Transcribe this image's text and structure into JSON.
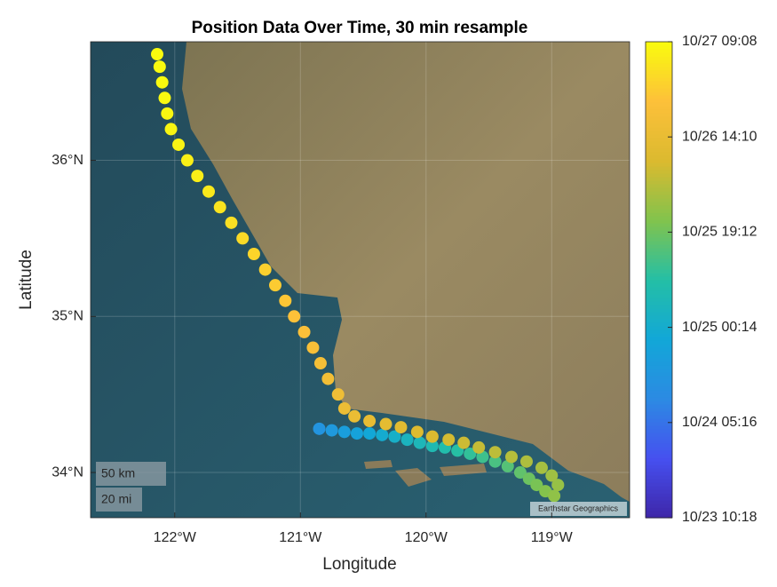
{
  "chart_data": {
    "type": "scatter",
    "title": "Position Data Over Time, 30 min resample",
    "xlabel": "Longitude",
    "ylabel": "Latitude",
    "xlim": [
      -122.67,
      -118.38
    ],
    "ylim": [
      33.71,
      36.76
    ],
    "xticks": [
      {
        "value": -122,
        "label": "122°W"
      },
      {
        "value": -121,
        "label": "121°W"
      },
      {
        "value": -120,
        "label": "120°W"
      },
      {
        "value": -119,
        "label": "119°W"
      }
    ],
    "yticks": [
      {
        "value": 34,
        "label": "34°N"
      },
      {
        "value": 35,
        "label": "35°N"
      },
      {
        "value": 36,
        "label": "36°N"
      }
    ],
    "clim": [
      "10/23 10:18",
      "10/27 09:08"
    ],
    "cticks": [
      "10/23 10:18",
      "10/24 05:16",
      "10/25 00:14",
      "10/25 19:12",
      "10/26 14:10",
      "10/27 09:08"
    ],
    "annotations": [
      "50 km",
      "20 mi",
      "Earthstar Geographics"
    ],
    "x": [
      -120.85,
      -120.75,
      -120.65,
      -120.55,
      -120.45,
      -120.35,
      -120.25,
      -120.15,
      -120.05,
      -119.95,
      -119.85,
      -119.75,
      -119.65,
      -119.55,
      -119.45,
      -119.35,
      -119.25,
      -119.18,
      -119.12,
      -119.05,
      -118.98,
      -118.95,
      -119.0,
      -119.08,
      -119.2,
      -119.32,
      -119.45,
      -119.58,
      -119.7,
      -119.82,
      -119.95,
      -120.07,
      -120.2,
      -120.32,
      -120.45,
      -120.57,
      -120.65,
      -120.7,
      -120.78,
      -120.84,
      -120.9,
      -120.97,
      -121.05,
      -121.12,
      -121.2,
      -121.28,
      -121.37,
      -121.46,
      -121.55,
      -121.64,
      -121.73,
      -121.82,
      -121.9,
      -121.97,
      -122.03,
      -122.06,
      -122.08,
      -122.1,
      -122.12,
      -122.14
    ],
    "y": [
      34.28,
      34.27,
      34.26,
      34.25,
      34.25,
      34.24,
      34.23,
      34.21,
      34.19,
      34.17,
      34.16,
      34.14,
      34.12,
      34.1,
      34.07,
      34.04,
      34.0,
      33.96,
      33.92,
      33.88,
      33.85,
      33.92,
      33.98,
      34.03,
      34.07,
      34.1,
      34.13,
      34.16,
      34.19,
      34.21,
      34.23,
      34.26,
      34.29,
      34.31,
      34.33,
      34.36,
      34.41,
      34.5,
      34.6,
      34.7,
      34.8,
      34.9,
      35.0,
      35.1,
      35.2,
      35.3,
      35.4,
      35.5,
      35.6,
      35.7,
      35.8,
      35.9,
      36.0,
      36.1,
      36.2,
      36.3,
      36.4,
      36.5,
      36.6,
      36.68
    ],
    "c": [
      "10/24 14:00",
      "10/24 16:00",
      "10/24 18:00",
      "10/24 20:00",
      "10/24 22:00",
      "10/25 00:00",
      "10/25 02:00",
      "10/25 04:00",
      "10/25 05:30",
      "10/25 07:00",
      "10/25 08:30",
      "10/25 10:00",
      "10/25 11:30",
      "10/25 13:00",
      "10/25 14:30",
      "10/25 16:00",
      "10/25 17:30",
      "10/25 19:00",
      "10/25 20:30",
      "10/25 22:00",
      "10/25 23:30",
      "10/26 00:30",
      "10/26 01:30",
      "10/26 02:30",
      "10/26 03:30",
      "10/26 04:30",
      "10/26 05:30",
      "10/26 06:30",
      "10/26 07:30",
      "10/26 08:30",
      "10/26 09:30",
      "10/26 10:30",
      "10/26 11:30",
      "10/26 12:30",
      "10/26 13:30",
      "10/26 14:30",
      "10/26 15:30",
      "10/26 16:30",
      "10/26 17:30",
      "10/26 18:30",
      "10/26 19:30",
      "10/26 20:30",
      "10/26 21:30",
      "10/26 22:30",
      "10/26 23:30",
      "10/27 00:30",
      "10/27 01:30",
      "10/27 02:30",
      "10/27 03:30",
      "10/27 04:30",
      "10/27 05:30",
      "10/27 06:30",
      "10/27 07:00",
      "10/27 07:30",
      "10/27 08:00",
      "10/27 08:20",
      "10/27 08:40",
      "10/27 08:50",
      "10/27 09:00",
      "10/27 09:08"
    ]
  }
}
